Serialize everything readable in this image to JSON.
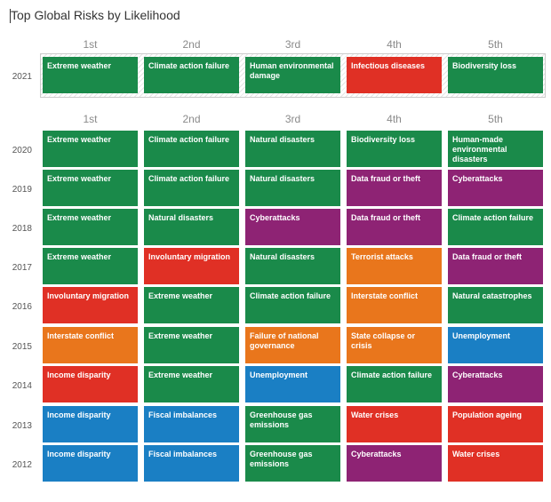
{
  "title": "Top Global Risks by Likelihood",
  "colors": {
    "environmental": "#1a8a4a",
    "technological": "#8e2374",
    "societal": "#e03025",
    "geopolitical": "#e9761c",
    "economic": "#1a7fc4"
  },
  "chart_data": {
    "type": "table",
    "title": "Top Global Risks by Likelihood",
    "columns": [
      "1st",
      "2nd",
      "3rd",
      "4th",
      "5th"
    ],
    "rows": [
      {
        "year": "2021",
        "cells": [
          {
            "label": "Extreme weather",
            "category": "environmental"
          },
          {
            "label": "Climate action failure",
            "category": "environmental"
          },
          {
            "label": "Human environmental damage",
            "category": "environmental"
          },
          {
            "label": "Infectious diseases",
            "category": "societal"
          },
          {
            "label": "Biodiversity loss",
            "category": "environmental"
          }
        ]
      },
      {
        "year": "2020",
        "cells": [
          {
            "label": "Extreme weather",
            "category": "environmental"
          },
          {
            "label": "Climate action failure",
            "category": "environmental"
          },
          {
            "label": "Natural disasters",
            "category": "environmental"
          },
          {
            "label": "Biodiversity loss",
            "category": "environmental"
          },
          {
            "label": "Human-made environmental disasters",
            "category": "environmental"
          }
        ]
      },
      {
        "year": "2019",
        "cells": [
          {
            "label": "Extreme weather",
            "category": "environmental"
          },
          {
            "label": "Climate action failure",
            "category": "environmental"
          },
          {
            "label": "Natural disasters",
            "category": "environmental"
          },
          {
            "label": "Data fraud or theft",
            "category": "technological"
          },
          {
            "label": "Cyberattacks",
            "category": "technological"
          }
        ]
      },
      {
        "year": "2018",
        "cells": [
          {
            "label": "Extreme weather",
            "category": "environmental"
          },
          {
            "label": "Natural disasters",
            "category": "environmental"
          },
          {
            "label": "Cyberattacks",
            "category": "technological"
          },
          {
            "label": "Data fraud or theft",
            "category": "technological"
          },
          {
            "label": "Climate action failure",
            "category": "environmental"
          }
        ]
      },
      {
        "year": "2017",
        "cells": [
          {
            "label": "Extreme weather",
            "category": "environmental"
          },
          {
            "label": "Involuntary migration",
            "category": "societal"
          },
          {
            "label": "Natural disasters",
            "category": "environmental"
          },
          {
            "label": "Terrorist attacks",
            "category": "geopolitical"
          },
          {
            "label": "Data fraud or theft",
            "category": "technological"
          }
        ]
      },
      {
        "year": "2016",
        "cells": [
          {
            "label": "Involuntary migration",
            "category": "societal"
          },
          {
            "label": "Extreme weather",
            "category": "environmental"
          },
          {
            "label": "Climate action failure",
            "category": "environmental"
          },
          {
            "label": "Interstate conflict",
            "category": "geopolitical"
          },
          {
            "label": "Natural catastrophes",
            "category": "environmental"
          }
        ]
      },
      {
        "year": "2015",
        "cells": [
          {
            "label": "Interstate conflict",
            "category": "geopolitical"
          },
          {
            "label": "Extreme weather",
            "category": "environmental"
          },
          {
            "label": "Failure of national governance",
            "category": "geopolitical"
          },
          {
            "label": "State collapse or crisis",
            "category": "geopolitical"
          },
          {
            "label": "Unemployment",
            "category": "economic"
          }
        ]
      },
      {
        "year": "2014",
        "cells": [
          {
            "label": "Income disparity",
            "category": "societal"
          },
          {
            "label": "Extreme weather",
            "category": "environmental"
          },
          {
            "label": "Unemployment",
            "category": "economic"
          },
          {
            "label": "Climate action failure",
            "category": "environmental"
          },
          {
            "label": "Cyberattacks",
            "category": "technological"
          }
        ]
      },
      {
        "year": "2013",
        "cells": [
          {
            "label": "Income disparity",
            "category": "economic"
          },
          {
            "label": "Fiscal imbalances",
            "category": "economic"
          },
          {
            "label": "Greenhouse gas emissions",
            "category": "environmental"
          },
          {
            "label": "Water crises",
            "category": "societal"
          },
          {
            "label": "Population ageing",
            "category": "societal"
          }
        ]
      },
      {
        "year": "2012",
        "cells": [
          {
            "label": "Income disparity",
            "category": "economic"
          },
          {
            "label": "Fiscal imbalances",
            "category": "economic"
          },
          {
            "label": "Greenhouse gas emissions",
            "category": "environmental"
          },
          {
            "label": "Cyberattacks",
            "category": "technological"
          },
          {
            "label": "Water crises",
            "category": "societal"
          }
        ]
      }
    ]
  }
}
